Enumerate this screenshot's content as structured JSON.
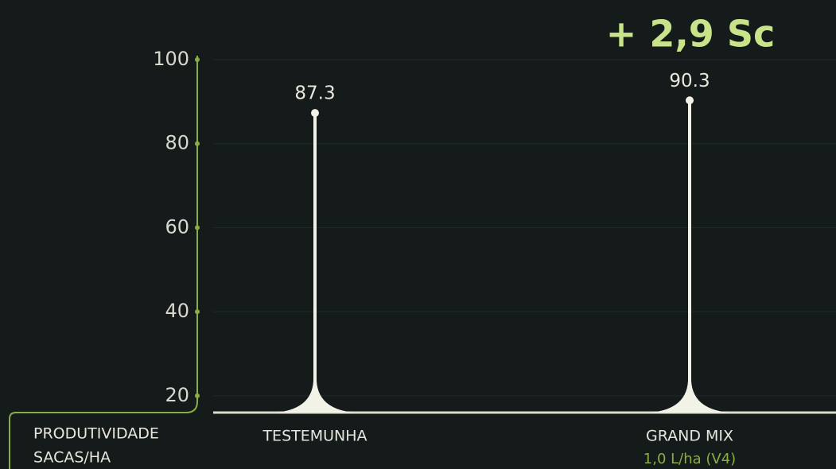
{
  "chart_data": {
    "type": "lollipop",
    "annotation": "+ 2,9 Sc",
    "ylabel_lines": [
      "PRODUTIVIDADE",
      "SACAS/HA"
    ],
    "categories": [
      "TESTEMUNHA",
      "GRAND MIX"
    ],
    "category_sublabels": [
      null,
      "1,0 L/ha (V4)"
    ],
    "values": [
      87.3,
      90.3
    ],
    "color": "#f2f2e6",
    "axis_color": "#8aad45",
    "ylim": [
      16,
      100
    ],
    "yticks": [
      20,
      40,
      60,
      80,
      100
    ],
    "grid": true
  }
}
